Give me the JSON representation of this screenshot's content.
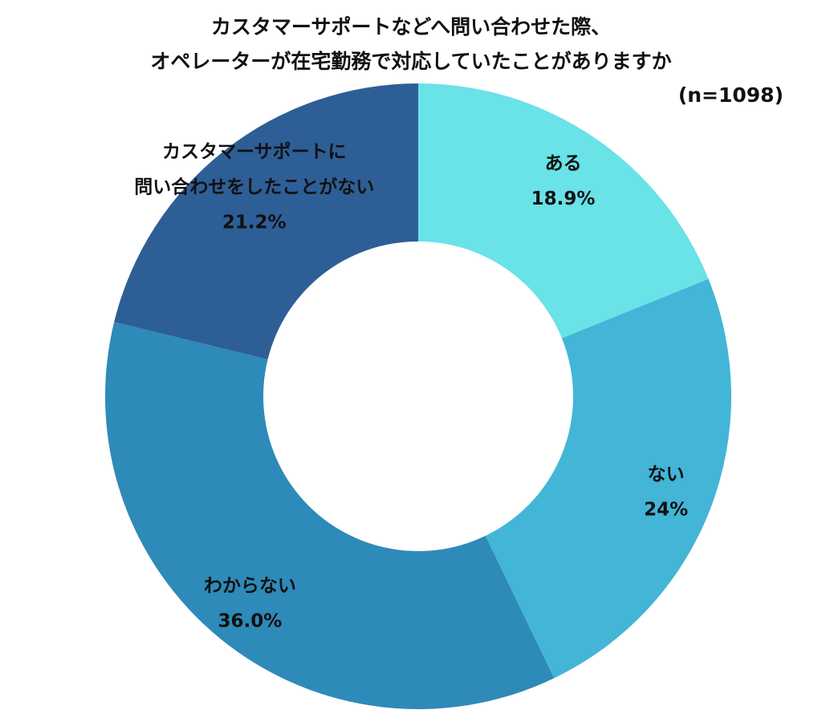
{
  "chart_data": {
    "type": "pie",
    "subtype": "donut",
    "title_lines": [
      "カスタマーサポートなどへ問い合わせた際、",
      "オペレーターが在宅勤務で対応していたことがありますか"
    ],
    "note": "(n=1098)",
    "slices": [
      {
        "label_lines": [
          "ある"
        ],
        "value_label": "18.9%",
        "value": 18.9,
        "color": "#69E2E8"
      },
      {
        "label_lines": [
          "ない"
        ],
        "value_label": "24%",
        "value": 24.0,
        "color": "#43B5D7"
      },
      {
        "label_lines": [
          "わからない"
        ],
        "value_label": "36.0%",
        "value": 36.0,
        "color": "#2E8AB8"
      },
      {
        "label_lines": [
          "カスタマーサポートに",
          "問い合わせをしたことがない"
        ],
        "value_label": "21.2%",
        "value": 21.2,
        "color": "#2E5E96"
      }
    ],
    "start_angle_deg": 0,
    "direction": "clockwise",
    "legend": "none"
  }
}
